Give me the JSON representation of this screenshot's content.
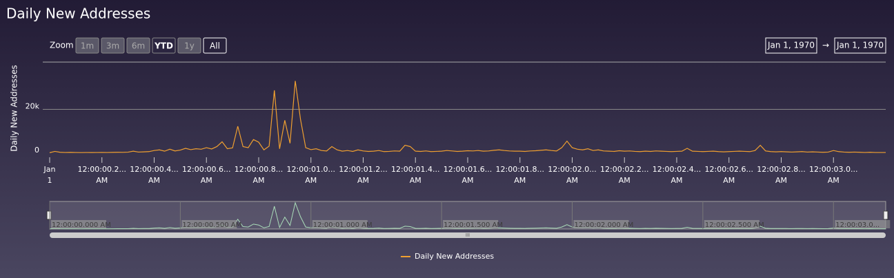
{
  "chart_data": {
    "type": "line",
    "title": "Daily New Addresses",
    "y_label": "Daily New Addresses",
    "range_selector": {
      "label": "Zoom",
      "buttons": [
        "1m",
        "3m",
        "6m",
        "YTD",
        "1y",
        "All"
      ],
      "selected": "All"
    },
    "date_range": {
      "from": "Jan 1, 1970",
      "separator": "→",
      "to": "Jan 1, 1970"
    },
    "xlim": [
      0,
      3200
    ],
    "ylim": [
      0,
      41600
    ],
    "yticks": [
      0,
      {
        "value": 20000,
        "label": "20k"
      }
    ],
    "xticks": [
      {
        "value": 0,
        "label": "Jan 1"
      },
      {
        "value": 200,
        "label": "12:00:00.2... AM"
      },
      {
        "value": 400,
        "label": "12:00:00.4... AM"
      },
      {
        "value": 600,
        "label": "12:00:00.6... AM"
      },
      {
        "value": 800,
        "label": "12:00:00.8... AM"
      },
      {
        "value": 1000,
        "label": "12:00:01.0... AM"
      },
      {
        "value": 1200,
        "label": "12:00:01.2... AM"
      },
      {
        "value": 1400,
        "label": "12:00:01.4... AM"
      },
      {
        "value": 1600,
        "label": "12:00:01.6... AM"
      },
      {
        "value": 1800,
        "label": "12:00:01.8... AM"
      },
      {
        "value": 2000,
        "label": "12:00:02.0... AM"
      },
      {
        "value": 2200,
        "label": "12:00:02.2... AM"
      },
      {
        "value": 2400,
        "label": "12:00:02.4... AM"
      },
      {
        "value": 2600,
        "label": "12:00:02.6... AM"
      },
      {
        "value": 2800,
        "label": "12:00:02.8... AM"
      },
      {
        "value": 3000,
        "label": "12:00:03.0... AM"
      }
    ],
    "navigator_xticks": [
      {
        "value": 0,
        "label": "12:00:00.000 AM"
      },
      {
        "value": 500,
        "label": "12:00:00.500 AM"
      },
      {
        "value": 1000,
        "label": "12:00:01.000 AM"
      },
      {
        "value": 1500,
        "label": "12:00:01.500 AM"
      },
      {
        "value": 2000,
        "label": "12:00:02.000 AM"
      },
      {
        "value": 2500,
        "label": "12:00:02.500 AM"
      },
      {
        "value": 3000,
        "label": "12:00:03.0..."
      }
    ],
    "navigator_color": "#9fd9b0",
    "x": [
      0,
      20,
      40,
      60,
      80,
      100,
      120,
      140,
      160,
      180,
      200,
      220,
      240,
      260,
      280,
      300,
      320,
      340,
      360,
      380,
      400,
      420,
      440,
      460,
      480,
      500,
      520,
      540,
      560,
      580,
      600,
      620,
      640,
      660,
      680,
      700,
      720,
      740,
      760,
      780,
      800,
      820,
      840,
      860,
      880,
      900,
      920,
      940,
      960,
      980,
      1000,
      1020,
      1040,
      1060,
      1080,
      1100,
      1120,
      1140,
      1160,
      1180,
      1200,
      1220,
      1240,
      1260,
      1280,
      1300,
      1320,
      1340,
      1360,
      1380,
      1400,
      1420,
      1440,
      1460,
      1480,
      1500,
      1520,
      1540,
      1560,
      1580,
      1600,
      1620,
      1640,
      1660,
      1680,
      1700,
      1720,
      1740,
      1760,
      1780,
      1800,
      1820,
      1840,
      1860,
      1880,
      1900,
      1920,
      1940,
      1960,
      1980,
      2000,
      2020,
      2040,
      2060,
      2080,
      2100,
      2120,
      2140,
      2160,
      2180,
      2200,
      2220,
      2240,
      2260,
      2280,
      2300,
      2320,
      2340,
      2360,
      2380,
      2400,
      2420,
      2440,
      2460,
      2480,
      2500,
      2520,
      2540,
      2560,
      2580,
      2600,
      2620,
      2640,
      2660,
      2680,
      2700,
      2720,
      2740,
      2760,
      2780,
      2800,
      2820,
      2840,
      2860,
      2880,
      2900,
      2920,
      2940,
      2960,
      2980,
      3000,
      3020,
      3040,
      3060,
      3080,
      3100,
      3120,
      3140,
      3160,
      3180,
      3200
    ],
    "series": [
      {
        "name": "Daily New Addresses",
        "color": "#f0a030",
        "values": [
          200,
          800,
          400,
          300,
          350,
          300,
          250,
          300,
          280,
          300,
          320,
          300,
          350,
          400,
          380,
          450,
          900,
          500,
          600,
          700,
          1200,
          1500,
          900,
          1800,
          1000,
          1400,
          2200,
          1600,
          2000,
          1800,
          2500,
          1900,
          3000,
          5200,
          2000,
          2400,
          12300,
          3000,
          2500,
          6200,
          5000,
          1500,
          3200,
          28700,
          2000,
          15000,
          4500,
          33000,
          15500,
          2500,
          1600,
          2000,
          1200,
          1000,
          3000,
          1500,
          900,
          1200,
          800,
          1500,
          1000,
          800,
          900,
          1200,
          700,
          800,
          1000,
          900,
          3600,
          3000,
          900,
          800,
          1000,
          700,
          800,
          900,
          1200,
          1000,
          800,
          900,
          1100,
          1000,
          1200,
          900,
          1000,
          1300,
          1500,
          1200,
          1000,
          900,
          900,
          800,
          1000,
          1100,
          1300,
          1500,
          1200,
          1000,
          2500,
          5500,
          2500,
          1800,
          1500,
          2000,
          1200,
          1500,
          1000,
          900,
          800,
          1100,
          900,
          1000,
          800,
          700,
          900,
          800,
          1000,
          900,
          800,
          700,
          800,
          900,
          2200,
          900,
          800,
          700,
          800,
          900,
          700,
          600,
          700,
          800,
          900,
          800,
          700,
          1200,
          3600,
          1000,
          700,
          600,
          700,
          600,
          500,
          600,
          700,
          500,
          600,
          500,
          400,
          500,
          1200,
          700,
          500,
          400,
          500,
          400,
          300,
          400,
          300,
          300,
          300
        ]
      }
    ]
  }
}
